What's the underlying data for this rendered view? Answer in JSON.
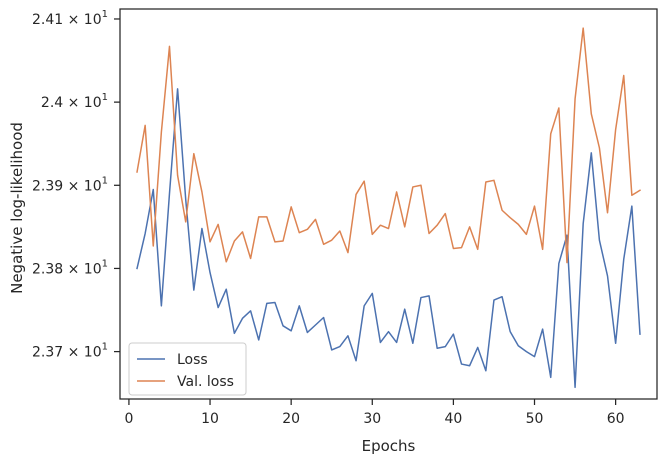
{
  "chart_data": {
    "type": "line",
    "xlabel": "Epochs",
    "ylabel": "Negative log-likelihood",
    "xlim": [
      -1.1,
      65.1
    ],
    "ylim": [
      23.643,
      24.112
    ],
    "grid": false,
    "legend_placement": "lower-left",
    "x_ticks": [
      {
        "value": 0,
        "label": "0"
      },
      {
        "value": 10,
        "label": "10"
      },
      {
        "value": 20,
        "label": "20"
      },
      {
        "value": 30,
        "label": "30"
      },
      {
        "value": 40,
        "label": "40"
      },
      {
        "value": 50,
        "label": "50"
      },
      {
        "value": 60,
        "label": "60"
      }
    ],
    "y_ticks": [
      {
        "value": 23.7,
        "base": "2.37",
        "exp": "1"
      },
      {
        "value": 23.8,
        "base": "2.38",
        "exp": "1"
      },
      {
        "value": 23.9,
        "base": "2.39",
        "exp": "1"
      },
      {
        "value": 24.0,
        "base": "2.4",
        "exp": "1"
      },
      {
        "value": 24.1,
        "base": "2.41",
        "exp": "1"
      }
    ],
    "times_symbol": "×",
    "tick_base": "10",
    "x": [
      1,
      2,
      3,
      4,
      5,
      6,
      7,
      8,
      9,
      10,
      11,
      12,
      13,
      14,
      15,
      16,
      17,
      18,
      19,
      20,
      21,
      22,
      23,
      24,
      25,
      26,
      27,
      28,
      29,
      30,
      31,
      32,
      33,
      34,
      35,
      36,
      37,
      38,
      39,
      40,
      41,
      42,
      43,
      44,
      45,
      46,
      47,
      48,
      49,
      50,
      51,
      52,
      53,
      54,
      55,
      56,
      57,
      58,
      59,
      60,
      61,
      62,
      63
    ],
    "series": [
      {
        "name": "Loss",
        "color": "#4c72b0",
        "values": [
          23.8,
          23.842,
          23.895,
          23.755,
          23.89,
          24.016,
          23.883,
          23.774,
          23.848,
          23.795,
          23.753,
          23.775,
          23.722,
          23.74,
          23.749,
          23.714,
          23.758,
          23.759,
          23.731,
          23.725,
          23.755,
          23.723,
          23.732,
          23.741,
          23.702,
          23.706,
          23.719,
          23.689,
          23.755,
          23.77,
          23.711,
          23.724,
          23.711,
          23.751,
          23.71,
          23.765,
          23.767,
          23.704,
          23.706,
          23.721,
          23.685,
          23.683,
          23.705,
          23.677,
          23.762,
          23.766,
          23.724,
          23.707,
          23.7,
          23.694,
          23.727,
          23.669,
          23.806,
          23.84,
          23.657,
          23.854,
          23.939,
          23.834,
          23.791,
          23.71,
          23.811,
          23.875,
          23.721
        ]
      },
      {
        "name": "Val. loss",
        "color": "#dd8452",
        "values": [
          23.916,
          23.972,
          23.827,
          23.964,
          24.067,
          23.912,
          23.856,
          23.938,
          23.892,
          23.832,
          23.853,
          23.808,
          23.833,
          23.844,
          23.812,
          23.862,
          23.862,
          23.832,
          23.833,
          23.874,
          23.843,
          23.847,
          23.859,
          23.829,
          23.834,
          23.845,
          23.819,
          23.889,
          23.905,
          23.841,
          23.852,
          23.848,
          23.892,
          23.85,
          23.898,
          23.9,
          23.842,
          23.852,
          23.866,
          23.824,
          23.825,
          23.85,
          23.823,
          23.904,
          23.906,
          23.87,
          23.861,
          23.853,
          23.841,
          23.875,
          23.823,
          23.962,
          23.993,
          23.807,
          24.004,
          24.089,
          23.986,
          23.945,
          23.867,
          23.967,
          24.032,
          23.888,
          23.894
        ]
      }
    ]
  }
}
